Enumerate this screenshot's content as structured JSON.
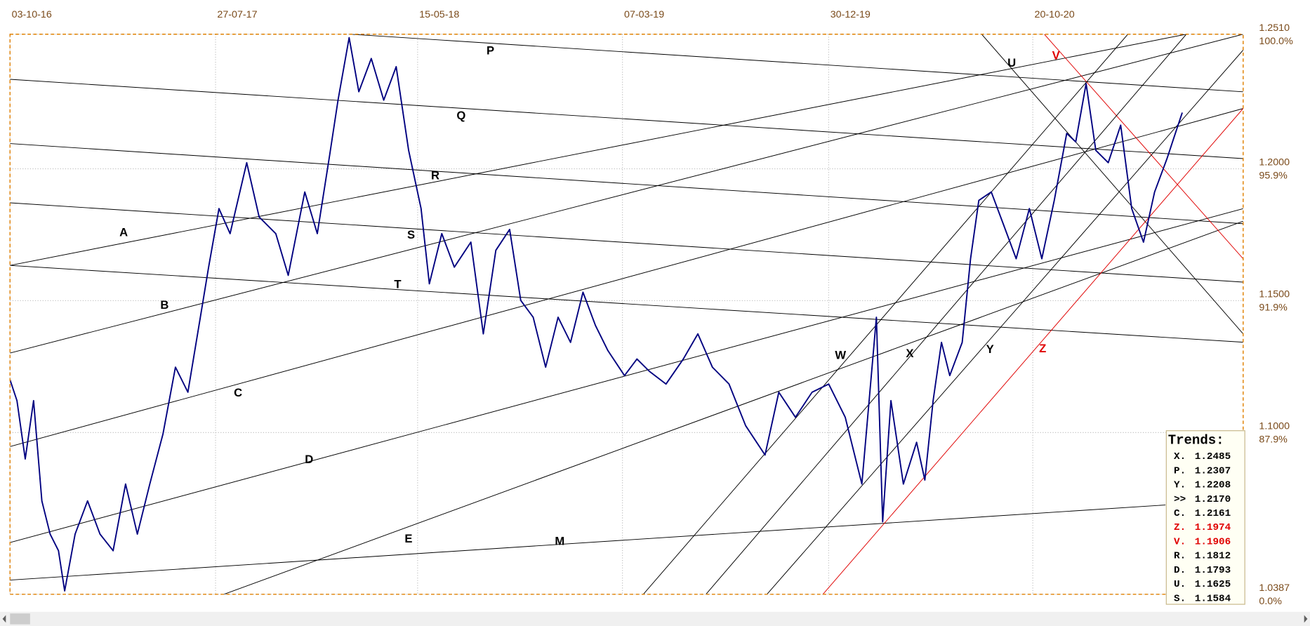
{
  "chart_data": {
    "type": "line",
    "series": [
      {
        "color": "#000080",
        "x": [
          "2016-10-03",
          "2016-10-13",
          "2016-10-25",
          "2016-11-06",
          "2016-11-18",
          "2016-11-30",
          "2016-12-12",
          "2016-12-21",
          "2017-01-05",
          "2017-01-23",
          "2017-02-10",
          "2017-03-01",
          "2017-03-19",
          "2017-04-05",
          "2017-04-23",
          "2017-05-12",
          "2017-05-30",
          "2017-06-17",
          "2017-07-05",
          "2017-07-17",
          "2017-08-01",
          "2017-08-17",
          "2017-09-10",
          "2017-09-28",
          "2017-10-22",
          "2017-11-09",
          "2017-12-03",
          "2017-12-21",
          "2018-01-08",
          "2018-01-20",
          "2018-02-05",
          "2018-02-19",
          "2018-03-09",
          "2018-03-27",
          "2018-04-14",
          "2018-05-02",
          "2018-05-20",
          "2018-06-01",
          "2018-06-19",
          "2018-07-07",
          "2018-07-31",
          "2018-08-18",
          "2018-09-05",
          "2018-09-25",
          "2018-10-11",
          "2018-10-29",
          "2018-11-16",
          "2018-12-04",
          "2018-12-22",
          "2019-01-09",
          "2019-01-27",
          "2019-02-14",
          "2019-03-10",
          "2019-03-28",
          "2019-04-15",
          "2019-05-09",
          "2019-06-03",
          "2019-06-24",
          "2019-07-15",
          "2019-08-08",
          "2019-09-01",
          "2019-09-29",
          "2019-10-19",
          "2019-11-12",
          "2019-12-06",
          "2019-12-30",
          "2020-01-23",
          "2020-02-16",
          "2020-03-08",
          "2020-03-17",
          "2020-03-29",
          "2020-04-16",
          "2020-05-05",
          "2020-05-17",
          "2020-05-29",
          "2020-06-10",
          "2020-06-22",
          "2020-07-10",
          "2020-07-22",
          "2020-08-03",
          "2020-08-21",
          "2020-09-08",
          "2020-09-26",
          "2020-10-15",
          "2020-11-02",
          "2020-11-20",
          "2020-12-08",
          "2020-12-21",
          "2021-01-05",
          "2021-01-19",
          "2021-02-06",
          "2021-02-24",
          "2021-03-12",
          "2021-03-29",
          "2021-04-14",
          "2021-05-02",
          "2021-05-14",
          "2021-05-24"
        ],
        "values": [
          1.12,
          1.1121,
          1.09,
          1.1121,
          1.0741,
          1.0615,
          1.0552,
          1.04,
          1.0615,
          1.0741,
          1.0615,
          1.0552,
          1.0805,
          1.0615,
          1.0805,
          1.0995,
          1.1248,
          1.1153,
          1.1437,
          1.1627,
          1.1849,
          1.1754,
          1.2023,
          1.1817,
          1.1754,
          1.1596,
          1.1912,
          1.1754,
          1.2054,
          1.226,
          1.2497,
          1.2292,
          1.2418,
          1.226,
          1.2387,
          1.207,
          1.1849,
          1.1564,
          1.1754,
          1.1627,
          1.1722,
          1.1374,
          1.1691,
          1.177,
          1.1501,
          1.1437,
          1.1248,
          1.1437,
          1.1342,
          1.1532,
          1.1406,
          1.1311,
          1.1216,
          1.1279,
          1.1232,
          1.1184,
          1.1279,
          1.1374,
          1.1248,
          1.1184,
          1.1026,
          1.0915,
          1.1153,
          1.1058,
          1.1153,
          1.1184,
          1.1058,
          1.0805,
          1.1437,
          1.0662,
          1.1121,
          1.0805,
          1.0963,
          1.082,
          1.1121,
          1.1342,
          1.1216,
          1.1342,
          1.1659,
          1.188,
          1.1912,
          1.1786,
          1.1659,
          1.1849,
          1.1659,
          1.188,
          1.2134,
          1.2102,
          1.2323,
          1.207,
          1.2023,
          1.2165,
          1.1849,
          1.1722,
          1.1912,
          1.2039,
          1.2134,
          1.2213
        ]
      }
    ],
    "xlim": [
      "2016-10-03",
      "2021-08-20"
    ],
    "xticks": [
      {
        "value": "2016-10-03",
        "label": "03-10-16"
      },
      {
        "value": "2017-07-27",
        "label": "27-07-17"
      },
      {
        "value": "2018-05-15",
        "label": "15-05-18"
      },
      {
        "value": "2019-03-07",
        "label": "07-03-19"
      },
      {
        "value": "2019-12-30",
        "label": "30-12-19"
      },
      {
        "value": "2020-10-20",
        "label": "20-10-20"
      }
    ],
    "ylim": [
      1.0387,
      1.251
    ],
    "yticks": [
      {
        "value": 1.251,
        "label": "1.2510",
        "pct": "100.0%"
      },
      {
        "value": 1.2,
        "label": "1.2000",
        "pct": "95.9%"
      },
      {
        "value": 1.15,
        "label": "1.1500",
        "pct": "91.9%"
      },
      {
        "value": 1.1,
        "label": "1.1000",
        "pct": "87.9%"
      },
      {
        "value": 1.0387,
        "label": "1.0387",
        "pct": "0.0%"
      }
    ],
    "grid": true,
    "trendline_labels": [
      {
        "label": "A",
        "color": "#000000"
      },
      {
        "label": "B",
        "color": "#000000"
      },
      {
        "label": "C",
        "color": "#000000"
      },
      {
        "label": "D",
        "color": "#000000"
      },
      {
        "label": "E",
        "color": "#000000"
      },
      {
        "label": "M",
        "color": "#000000"
      },
      {
        "label": "P",
        "color": "#000000"
      },
      {
        "label": "Q",
        "color": "#000000"
      },
      {
        "label": "R",
        "color": "#000000"
      },
      {
        "label": "S",
        "color": "#000000"
      },
      {
        "label": "T",
        "color": "#000000"
      },
      {
        "label": "U",
        "color": "#000000"
      },
      {
        "label": "V",
        "color": "#e00000"
      },
      {
        "label": "W",
        "color": "#000000"
      },
      {
        "label": "X",
        "color": "#000000"
      },
      {
        "label": "Y",
        "color": "#000000"
      },
      {
        "label": "Z",
        "color": "#e00000"
      }
    ],
    "trends_box": {
      "title": "Trends:",
      "entries": [
        {
          "label": "X.",
          "value": "1.2485",
          "color": "#000000"
        },
        {
          "label": "P.",
          "value": "1.2307",
          "color": "#000000"
        },
        {
          "label": "Y.",
          "value": "1.2208",
          "color": "#000000"
        },
        {
          "label": ">>",
          "value": "1.2170",
          "color": "#000000"
        },
        {
          "label": "C.",
          "value": "1.2161",
          "color": "#000000"
        },
        {
          "label": "Z.",
          "value": "1.1974",
          "color": "#e00000"
        },
        {
          "label": "V.",
          "value": "1.1906",
          "color": "#e00000"
        },
        {
          "label": "R.",
          "value": "1.1812",
          "color": "#000000"
        },
        {
          "label": "D.",
          "value": "1.1793",
          "color": "#000000"
        },
        {
          "label": "U.",
          "value": "1.1625",
          "color": "#000000"
        },
        {
          "label": "S.",
          "value": "1.1584",
          "color": "#000000"
        }
      ]
    }
  }
}
